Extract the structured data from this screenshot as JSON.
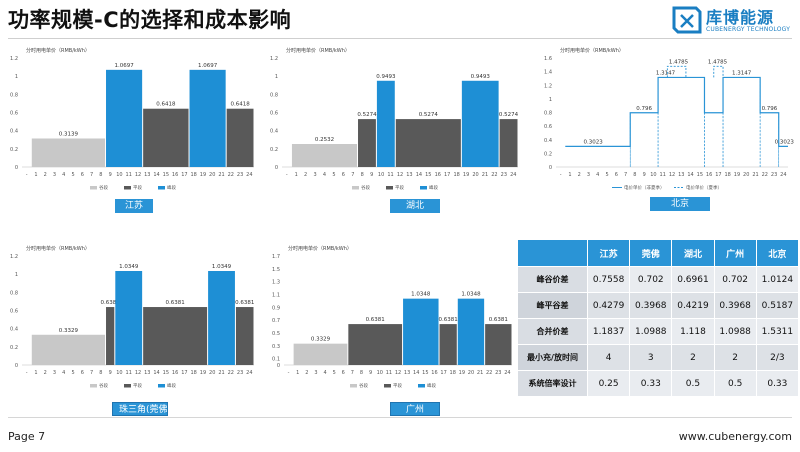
{
  "header": {
    "title": "功率规模-C的选择和成本影响",
    "logo_name": "库博能源",
    "logo_sub": "CUBENERGY TECHNOLOGY"
  },
  "footer": {
    "page": "Page 7",
    "url": "www.cubenergy.com"
  },
  "colors": {
    "valley": "#c8c8c8",
    "flat": "#595959",
    "peak": "#1e8fd5",
    "accent": "#2a94d6"
  },
  "chart_data": [
    {
      "type": "bar",
      "region": "江苏",
      "title": "分时用电单价（RMB/kWh）",
      "ylim": [
        0,
        1.2
      ],
      "yticks": [
        0,
        0.2,
        0.4,
        0.6,
        0.8,
        1.0,
        1.2
      ],
      "xticks": [
        "-",
        "1",
        "2",
        "3",
        "4",
        "5",
        "6",
        "7",
        "8",
        "9",
        "10",
        "11",
        "12",
        "13",
        "14",
        "15",
        "16",
        "17",
        "18",
        "19",
        "20",
        "21",
        "22",
        "23",
        "24"
      ],
      "segments": [
        {
          "start": 0,
          "end": 8,
          "value": 0.3139,
          "kind": "valley"
        },
        {
          "start": 8,
          "end": 12,
          "value": 1.0697,
          "kind": "peak"
        },
        {
          "start": 12,
          "end": 17,
          "value": 0.6418,
          "kind": "flat"
        },
        {
          "start": 17,
          "end": 21,
          "value": 1.0697,
          "kind": "peak"
        },
        {
          "start": 21,
          "end": 24,
          "value": 0.6418,
          "kind": "flat"
        }
      ],
      "legend": [
        "谷段",
        "平段",
        "峰段"
      ]
    },
    {
      "type": "bar",
      "region": "湖北",
      "title": "分时用电单价（RMB/kWh）",
      "ylim": [
        0,
        1.2
      ],
      "yticks": [
        0,
        0.2,
        0.4,
        0.6,
        0.8,
        1.0,
        1.2
      ],
      "xticks": [
        "-",
        "1",
        "2",
        "3",
        "4",
        "5",
        "6",
        "7",
        "8",
        "9",
        "10",
        "11",
        "12",
        "13",
        "14",
        "15",
        "16",
        "17",
        "18",
        "19",
        "20",
        "21",
        "22",
        "23",
        "24"
      ],
      "segments": [
        {
          "start": 0,
          "end": 7,
          "value": 0.2532,
          "kind": "valley"
        },
        {
          "start": 7,
          "end": 9,
          "value": 0.5274,
          "kind": "flat"
        },
        {
          "start": 9,
          "end": 11,
          "value": 0.9493,
          "kind": "peak"
        },
        {
          "start": 11,
          "end": 18,
          "value": 0.5274,
          "kind": "flat"
        },
        {
          "start": 18,
          "end": 22,
          "value": 0.9493,
          "kind": "peak"
        },
        {
          "start": 22,
          "end": 24,
          "value": 0.5274,
          "kind": "flat"
        }
      ],
      "legend": [
        "谷段",
        "平段",
        "峰段"
      ]
    },
    {
      "type": "line",
      "region": "北京",
      "title": "分时用电单价（RMB/kWh）",
      "ylim": [
        0,
        1.6
      ],
      "yticks": [
        0,
        0.2,
        0.4,
        0.6,
        0.8,
        1.0,
        1.2,
        1.4,
        1.6
      ],
      "xticks": [
        "-",
        "1",
        "2",
        "3",
        "4",
        "5",
        "6",
        "7",
        "8",
        "9",
        "10",
        "11",
        "12",
        "13",
        "14",
        "15",
        "16",
        "17",
        "18",
        "19",
        "20",
        "21",
        "22",
        "23",
        "24"
      ],
      "steps": [
        {
          "start": 0,
          "end": 7,
          "value": 0.3023
        },
        {
          "start": 7,
          "end": 10,
          "value": 0.796
        },
        {
          "start": 10,
          "end": 15,
          "value": 1.3147
        },
        {
          "start": 15,
          "end": 17,
          "value": 0.796
        },
        {
          "start": 17,
          "end": 21,
          "value": 1.3147
        },
        {
          "start": 21,
          "end": 23,
          "value": 0.796
        },
        {
          "start": 23,
          "end": 24,
          "value": 0.3023
        }
      ],
      "summer_peaks": [
        {
          "start": 11,
          "end": 13,
          "value": 1.4785
        },
        {
          "start": 16,
          "end": 17,
          "value": 1.4785
        }
      ],
      "labels": [
        {
          "x": 3,
          "value": "0.3023"
        },
        {
          "x": 8.5,
          "value": "0.796"
        },
        {
          "x": 10.8,
          "value": "1.3147"
        },
        {
          "x": 12.2,
          "value": "1.4785"
        },
        {
          "x": 16.4,
          "value": "1.4785"
        },
        {
          "x": 19,
          "value": "1.3147"
        },
        {
          "x": 22,
          "value": "0.796"
        },
        {
          "x": 23.6,
          "value": "0.3023"
        }
      ],
      "legend": [
        "电价单价（非夏季）",
        "电价单价（夏季）"
      ]
    },
    {
      "type": "bar",
      "region": "珠三角(莞佛)",
      "title": "分时用电单价（RMB/kWh）",
      "ylim": [
        0,
        1.2
      ],
      "yticks": [
        0,
        0.2,
        0.4,
        0.6,
        0.8,
        1.0,
        1.2
      ],
      "xticks": [
        "-",
        "1",
        "2",
        "3",
        "4",
        "5",
        "6",
        "7",
        "8",
        "9",
        "10",
        "11",
        "12",
        "13",
        "14",
        "15",
        "16",
        "17",
        "18",
        "19",
        "20",
        "21",
        "22",
        "23",
        "24"
      ],
      "segments": [
        {
          "start": 0,
          "end": 8,
          "value": 0.3329,
          "kind": "valley"
        },
        {
          "start": 8,
          "end": 9,
          "value": 0.6381,
          "kind": "flat"
        },
        {
          "start": 9,
          "end": 12,
          "value": 1.0349,
          "kind": "peak"
        },
        {
          "start": 12,
          "end": 19,
          "value": 0.6381,
          "kind": "flat"
        },
        {
          "start": 19,
          "end": 22,
          "value": 1.0349,
          "kind": "peak"
        },
        {
          "start": 22,
          "end": 24,
          "value": 0.6381,
          "kind": "flat"
        }
      ],
      "legend": [
        "谷段",
        "平段",
        "峰段"
      ]
    },
    {
      "type": "bar",
      "region": "广州",
      "title": "分时用电单价（RMB/kWh）",
      "ylim": [
        0,
        1.7
      ],
      "yticks": [
        0,
        0.1,
        0.3,
        0.5,
        0.7,
        0.9,
        1.1,
        1.3,
        1.5,
        1.7
      ],
      "xticks": [
        "-",
        "1",
        "2",
        "3",
        "4",
        "5",
        "6",
        "7",
        "8",
        "9",
        "10",
        "11",
        "12",
        "13",
        "14",
        "15",
        "16",
        "17",
        "18",
        "19",
        "20",
        "21",
        "22",
        "23",
        "24"
      ],
      "segments": [
        {
          "start": 0,
          "end": 6,
          "value": 0.3329,
          "kind": "valley"
        },
        {
          "start": 6,
          "end": 12,
          "value": 0.6381,
          "kind": "flat"
        },
        {
          "start": 12,
          "end": 16,
          "value": 1.0348,
          "kind": "peak"
        },
        {
          "start": 16,
          "end": 18,
          "value": 0.6381,
          "kind": "flat"
        },
        {
          "start": 18,
          "end": 21,
          "value": 1.0348,
          "kind": "peak"
        },
        {
          "start": 21,
          "end": 24,
          "value": 0.6381,
          "kind": "flat"
        }
      ],
      "legend": [
        "谷段",
        "平段",
        "峰段"
      ]
    },
    {
      "type": "table",
      "columns": [
        "江苏",
        "莞佛",
        "湖北",
        "广州",
        "北京"
      ],
      "rows": [
        {
          "label": "峰谷价差",
          "values": [
            "0.7558",
            "0.702",
            "0.6961",
            "0.702",
            "1.0124"
          ]
        },
        {
          "label": "峰平谷差",
          "values": [
            "0.4279",
            "0.3968",
            "0.4219",
            "0.3968",
            "0.5187"
          ]
        },
        {
          "label": "合并价差",
          "values": [
            "1.1837",
            "1.0988",
            "1.118",
            "1.0988",
            "1.5311"
          ]
        },
        {
          "label": "最小充/放时间",
          "values": [
            "4",
            "3",
            "2",
            "2",
            "2/3"
          ]
        },
        {
          "label": "系统倍率设计",
          "values": [
            "0.25",
            "0.33",
            "0.5",
            "0.5",
            "0.33"
          ]
        }
      ]
    }
  ]
}
